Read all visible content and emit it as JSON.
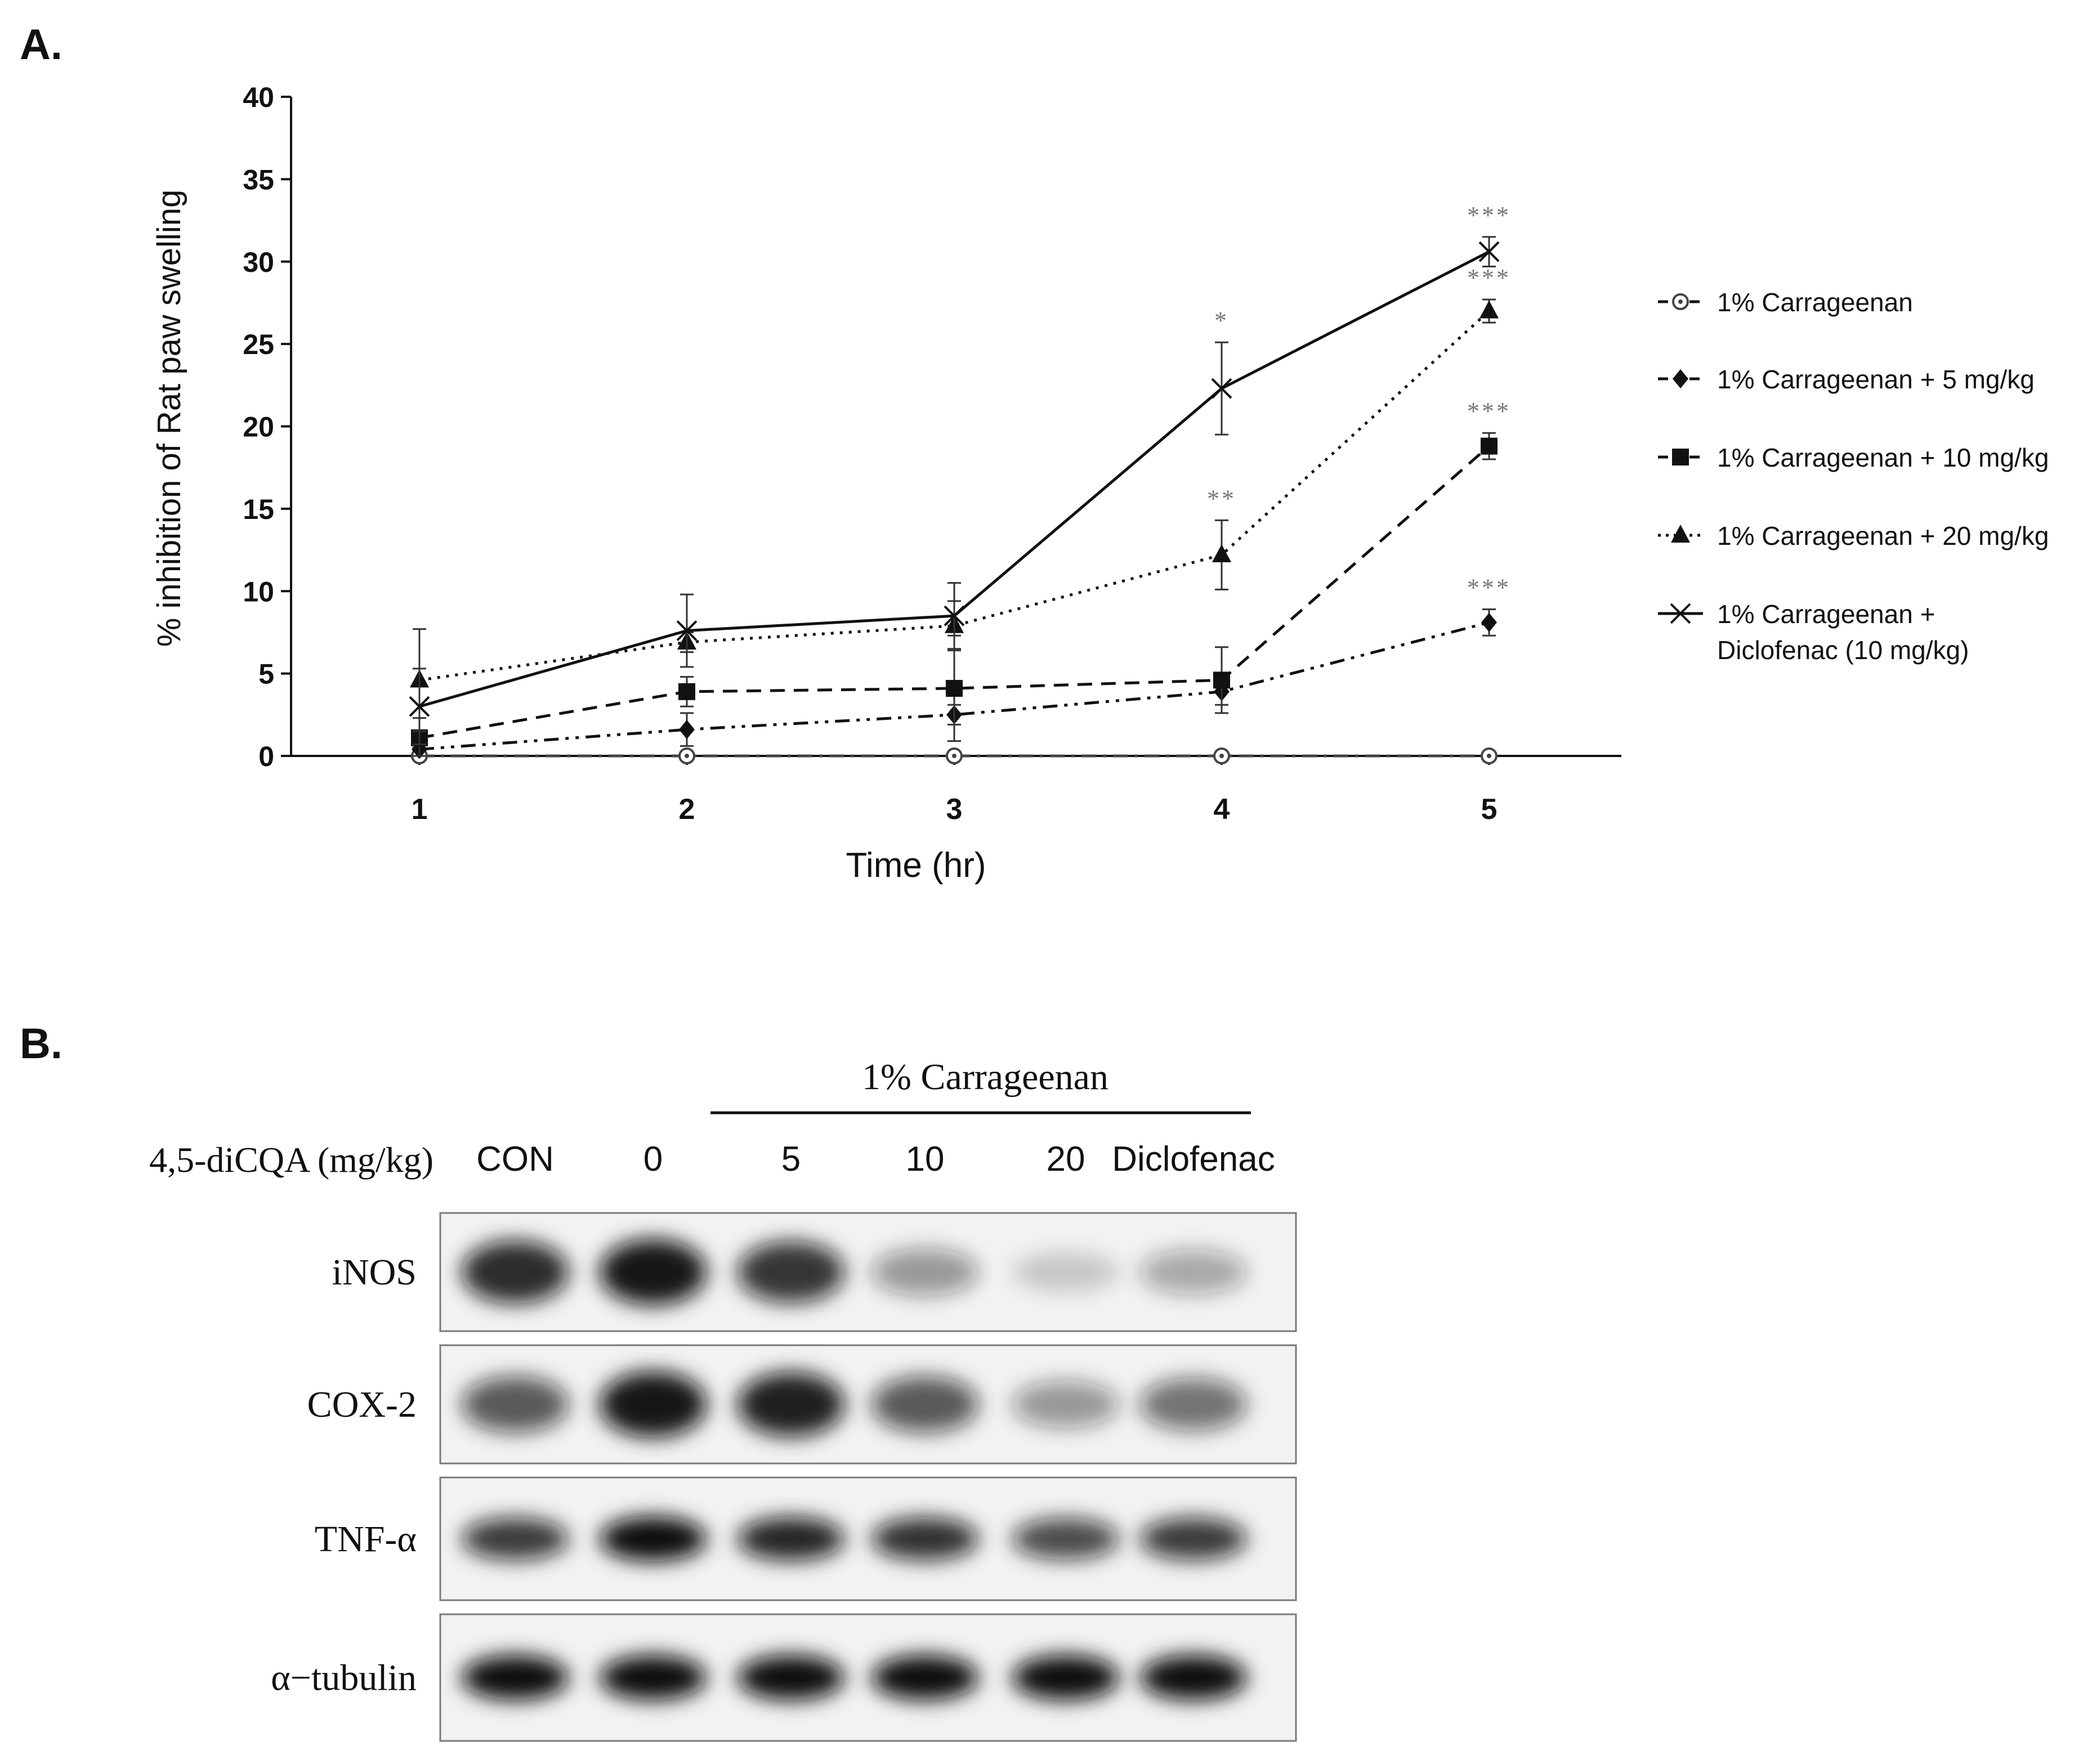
{
  "panel_a": {
    "label": "A.",
    "chart_data": {
      "type": "line",
      "xlabel": "Time (hr)",
      "ylabel": "% inhibition of Rat paw swelling",
      "x": [
        1,
        2,
        3,
        4,
        5
      ],
      "xticks": [
        "1",
        "2",
        "3",
        "4",
        "5"
      ],
      "ylim": [
        0,
        40
      ],
      "yticks": [
        "0",
        "5",
        "10",
        "15",
        "20",
        "25",
        "30",
        "35",
        "40"
      ],
      "grid": false,
      "legend_position": "right",
      "series": [
        {
          "name": "1% Carrageenan",
          "marker": "circle-dot",
          "dash": "dash-dot",
          "values": [
            0,
            0,
            0,
            0,
            0
          ],
          "errors": [
            0.5,
            0,
            0,
            0,
            0
          ],
          "significance": [
            "",
            "",
            "",
            "",
            ""
          ]
        },
        {
          "name": "1% Carrageenan + 5 mg/kg",
          "marker": "diamond",
          "dash": "dash-dot-dot",
          "values": [
            0.4,
            1.6,
            2.5,
            3.9,
            8.1
          ],
          "errors": [
            0.8,
            1.0,
            0.6,
            0.8,
            0.8
          ],
          "significance": [
            "",
            "",
            "",
            "",
            "***"
          ]
        },
        {
          "name": "1% Carrageenan + 10 mg/kg",
          "marker": "square",
          "dash": "dashed",
          "values": [
            1.1,
            3.9,
            4.1,
            4.6,
            18.8
          ],
          "errors": [
            1.2,
            0.9,
            3.2,
            2.0,
            0.8
          ],
          "significance": [
            "",
            "",
            "",
            "",
            "***"
          ]
        },
        {
          "name": "1% Carrageenan + 20 mg/kg",
          "marker": "triangle",
          "dash": "dotted",
          "values": [
            4.6,
            6.9,
            7.9,
            12.2,
            27.0
          ],
          "errors": [
            3.1,
            0.6,
            1.5,
            2.1,
            0.7
          ],
          "significance": [
            "",
            "",
            "",
            "**",
            "***"
          ]
        },
        {
          "name": "1% Carrageenan + Diclofenac (10 mg/kg)",
          "marker": "x",
          "dash": "solid",
          "values": [
            3.0,
            7.6,
            8.5,
            22.3,
            30.6
          ],
          "errors": [
            2.3,
            2.2,
            2.0,
            2.8,
            0.9
          ],
          "significance": [
            "",
            "",
            "",
            "*",
            "***"
          ]
        }
      ]
    },
    "legend_lines": [
      [
        "1% Carrageenan"
      ],
      [
        "1% Carrageenan + 5 mg/kg"
      ],
      [
        "1% Carrageenan + 10 mg/kg"
      ],
      [
        "1% Carrageenan + 20 mg/kg"
      ],
      [
        "1% Carrageenan +",
        "Diclofenac (10 mg/kg)"
      ]
    ]
  },
  "panel_b": {
    "label": "B.",
    "treatment_header": "1% Carrageenan",
    "dose_label": "4,5-diCQA (mg/kg)",
    "lanes": [
      "CON",
      "0",
      "5",
      "10",
      "20",
      "Diclofenac"
    ],
    "blots": [
      {
        "protein": "iNOS",
        "intensities": [
          0.85,
          0.95,
          0.8,
          0.3,
          0.04,
          0.22
        ]
      },
      {
        "protein": "COX-2",
        "intensities": [
          0.62,
          0.95,
          0.9,
          0.62,
          0.3,
          0.5
        ]
      },
      {
        "protein": "TNF-α",
        "intensities": [
          0.78,
          1.0,
          0.88,
          0.82,
          0.7,
          0.78
        ]
      },
      {
        "protein": "α−tubulin",
        "intensities": [
          1.0,
          1.0,
          1.0,
          1.0,
          1.0,
          1.0
        ]
      }
    ],
    "colors": {
      "ink": "#111111",
      "blot_bg": "#f2f2f2",
      "membrane_border": "#7a7a7a",
      "stars": "#777777"
    }
  }
}
